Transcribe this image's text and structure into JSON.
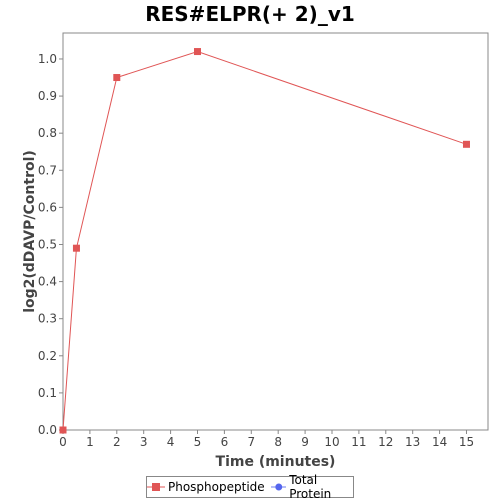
{
  "chart_data": {
    "type": "line",
    "title": "RES#ELPR(+ 2)_v1",
    "xlabel": "Time (minutes)",
    "ylabel": "log2(dDAVP/Control)",
    "xlim": [
      0,
      15.8
    ],
    "ylim": [
      0,
      1.07
    ],
    "x_ticks": [
      0,
      1,
      2,
      3,
      4,
      5,
      6,
      7,
      8,
      9,
      10,
      11,
      12,
      13,
      14,
      15
    ],
    "y_ticks": [
      0.0,
      0.1,
      0.2,
      0.3,
      0.4,
      0.5,
      0.6,
      0.7,
      0.8,
      0.9,
      1.0
    ],
    "y_tick_labels": [
      "0.0",
      "0.1",
      "0.2",
      "0.3",
      "0.4",
      "0.5",
      "0.6",
      "0.7",
      "0.8",
      "0.9",
      "1.0"
    ],
    "grid": false,
    "legend_position": "bottom",
    "series": [
      {
        "name": "Phosphopeptide",
        "color": "#e05555",
        "marker": "square",
        "x": [
          0,
          0.5,
          2,
          5,
          15
        ],
        "y": [
          0.0,
          0.49,
          0.95,
          1.02,
          0.77
        ]
      },
      {
        "name": "Total Protein",
        "color": "#5566ee",
        "marker": "circle",
        "x": [],
        "y": []
      }
    ]
  }
}
